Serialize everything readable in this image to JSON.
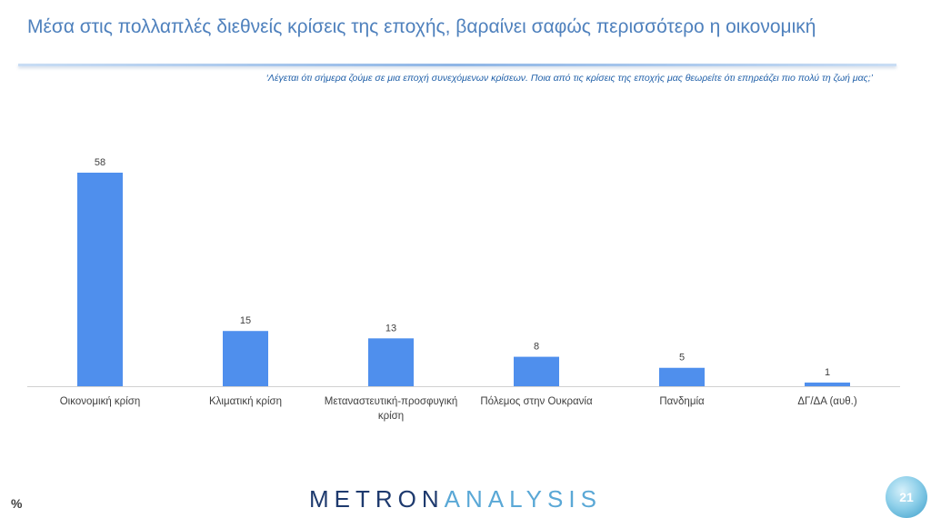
{
  "header": {
    "title": "Μέσα στις πολλαπλές διεθνείς κρίσεις της εποχής, βαραίνει σαφώς περισσότερο η οικονομική",
    "question": "‘Λέγεται ότι σήμερα ζούμε σε μια εποχή συνεχόμενων κρίσεων. Ποια από τις κρίσεις της εποχής μας θεωρείτε ότι επηρεάζει πιο πολύ τη ζωή μας;’"
  },
  "footer": {
    "unit": "%",
    "brand_part1": "METRON",
    "brand_part2": "ANALYSIS",
    "page_number": "21"
  },
  "colors": {
    "bar": "#4f8fed",
    "title": "#4f81bd",
    "subtitle": "#1f5fa8",
    "brand_dark": "#1e3a6e",
    "brand_light": "#5aa8d6"
  },
  "chart_data": {
    "type": "bar",
    "title": "",
    "xlabel": "",
    "ylabel": "",
    "ylim": [
      0,
      60
    ],
    "grid": false,
    "legend": "none",
    "categories": [
      [
        "Οικονομική κρίση"
      ],
      [
        "Κλιματική κρίση"
      ],
      [
        "Μεταναστευτική-προσφυγική",
        "κρίση"
      ],
      [
        "Πόλεμος στην Ουκρανία"
      ],
      [
        "Πανδημία"
      ],
      [
        "ΔΓ/ΔΑ (αυθ.)"
      ]
    ],
    "values": [
      58,
      15,
      13,
      8,
      5,
      1
    ]
  }
}
